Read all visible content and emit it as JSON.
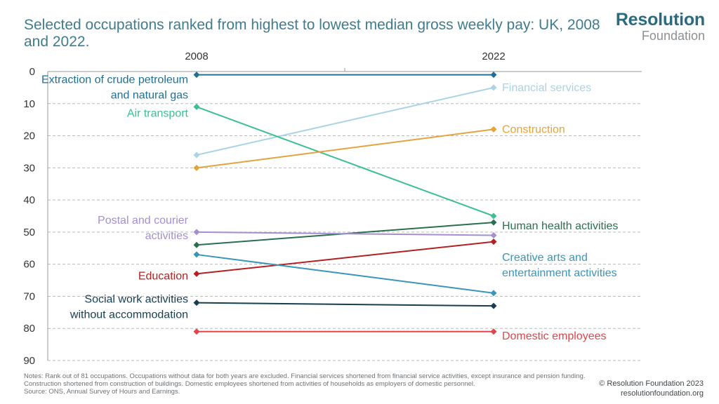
{
  "title": "Selected occupations ranked from highest to lowest median gross weekly pay: UK, 2008 and 2022.",
  "logo": {
    "line1": "Resolution",
    "line2": "Foundation"
  },
  "notes": {
    "line1": "Notes: Rank out of 81 occupations. Occupations without data for both years are excluded. Financial services shortened from financial service activities, except insurance and pension funding. Construction shortened from construction of buildings. Domestic employees shortened from activities of households as employers of domestic personnel.",
    "line2": "Source: ONS, Annual Survey of Hours and Earnings."
  },
  "copyright": {
    "line1": "© Resolution Foundation 2023",
    "line2": "resolutionfoundation.org"
  },
  "chart_data": {
    "type": "line",
    "x": [
      "2008",
      "2022"
    ],
    "ylim": [
      0,
      90
    ],
    "y_inverted": true,
    "yticks": [
      0,
      10,
      20,
      30,
      40,
      50,
      60,
      70,
      80,
      90
    ],
    "grid": "horizontal dashed",
    "series": [
      {
        "name": "Extraction of crude petroleum and natural gas",
        "label_lines": [
          "Extraction of crude petroleum",
          "and natural gas"
        ],
        "label_side": "left",
        "values": [
          1,
          1
        ],
        "color": "#1f7091"
      },
      {
        "name": "Financial services",
        "label_lines": [
          "Financial services"
        ],
        "label_side": "right",
        "values": [
          26,
          5
        ],
        "color": "#a9d3e6"
      },
      {
        "name": "Air transport",
        "label_lines": [
          "Air transport"
        ],
        "label_side": "left",
        "values": [
          11,
          45
        ],
        "color": "#3cbf91"
      },
      {
        "name": "Construction",
        "label_lines": [
          "Construction"
        ],
        "label_side": "right",
        "values": [
          30,
          18
        ],
        "color": "#e3a43d"
      },
      {
        "name": "Human health activities",
        "label_lines": [
          "Human health activities"
        ],
        "label_side": "right",
        "values": [
          54,
          47
        ],
        "color": "#2a6f50"
      },
      {
        "name": "Postal and courier activities",
        "label_lines": [
          "Postal and courier",
          "activities"
        ],
        "label_side": "left",
        "values": [
          50,
          51
        ],
        "color": "#a48fd1"
      },
      {
        "name": "Education",
        "label_lines": [
          "Education"
        ],
        "label_side": "left",
        "values": [
          63,
          53
        ],
        "color": "#b22222"
      },
      {
        "name": "Creative arts and entertainment activities",
        "label_lines": [
          "Creative arts and",
          "entertainment activities"
        ],
        "label_side": "right",
        "values": [
          57,
          69
        ],
        "color": "#3a95ba"
      },
      {
        "name": "Social work activities without accommodation",
        "label_lines": [
          "Social work activities",
          "without accommodation"
        ],
        "label_side": "left",
        "values": [
          72,
          73
        ],
        "color": "#163f52"
      },
      {
        "name": "Domestic employees",
        "label_lines": [
          "Domestic employees"
        ],
        "label_side": "right",
        "values": [
          81,
          81
        ],
        "color": "#e0474c"
      }
    ]
  }
}
